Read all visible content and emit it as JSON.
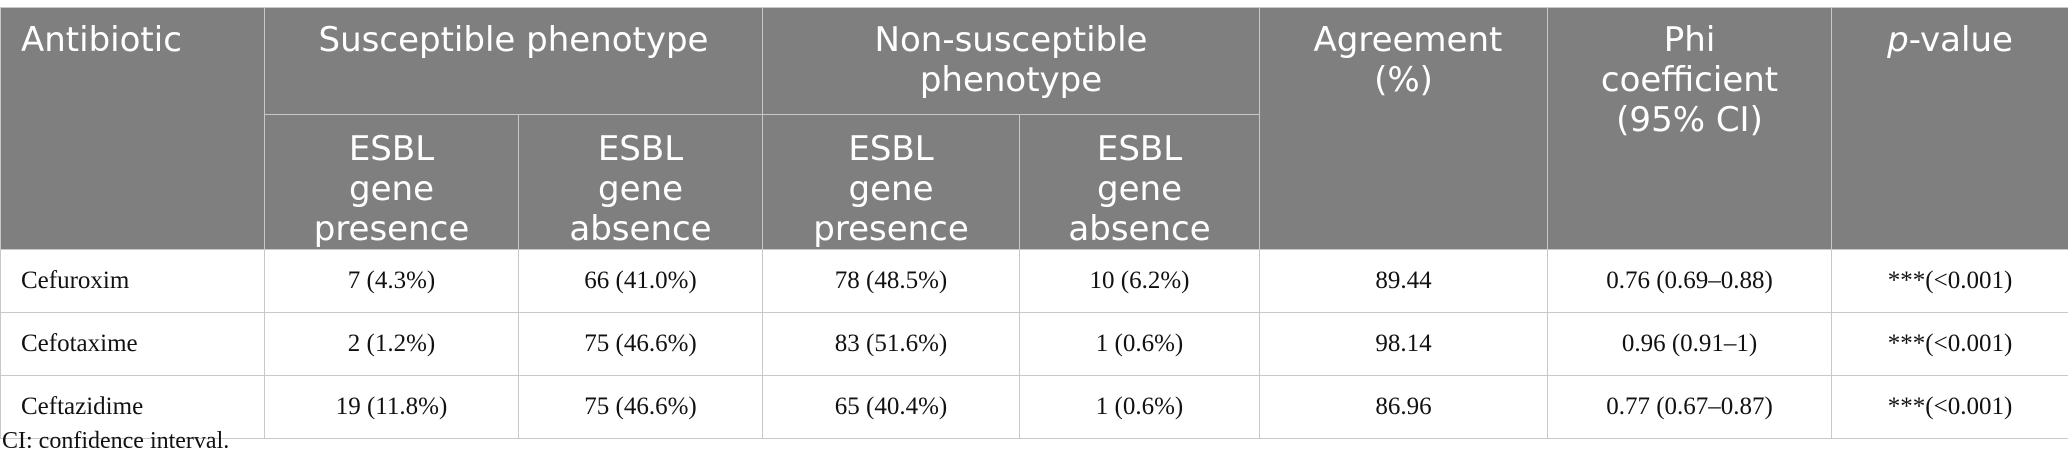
{
  "table": {
    "headers": {
      "antibiotic": "Antibiotic",
      "susceptible": "Susceptible phenotype",
      "non_susceptible": "Non-susceptible phenotype",
      "agreement": "Agreement (%)",
      "phi": "Phi coefficient (95% CI)",
      "p_value_italic": "p",
      "p_value_rest": "-value",
      "sub": {
        "s_presence": "ESBL gene presence",
        "s_absence": "ESBL gene absence",
        "ns_presence": "ESBL gene presence",
        "ns_absence": "ESBL gene absence"
      }
    },
    "rows": [
      {
        "antibiotic": "Cefuroxim",
        "s_presence": "7 (4.3%)",
        "s_absence": "66 (41.0%)",
        "ns_presence": "78 (48.5%)",
        "ns_absence": "10 (6.2%)",
        "agreement": "89.44",
        "phi": "0.76 (0.69–0.88)",
        "p_value": "***(<0.001)"
      },
      {
        "antibiotic": "Cefotaxime",
        "s_presence": "2 (1.2%)",
        "s_absence": "75 (46.6%)",
        "ns_presence": "83 (51.6%)",
        "ns_absence": "1 (0.6%)",
        "agreement": "98.14",
        "phi": "0.96 (0.91–1)",
        "p_value": "***(<0.001)"
      },
      {
        "antibiotic": "Ceftazidime",
        "s_presence": "19 (11.8%)",
        "s_absence": "75 (46.6%)",
        "ns_presence": "65 (40.4%)",
        "ns_absence": "1 (0.6%)",
        "agreement": "86.96",
        "phi": "0.77 (0.67–0.87)",
        "p_value": "***(<0.001)"
      }
    ]
  },
  "footnote": "CI: confidence interval."
}
